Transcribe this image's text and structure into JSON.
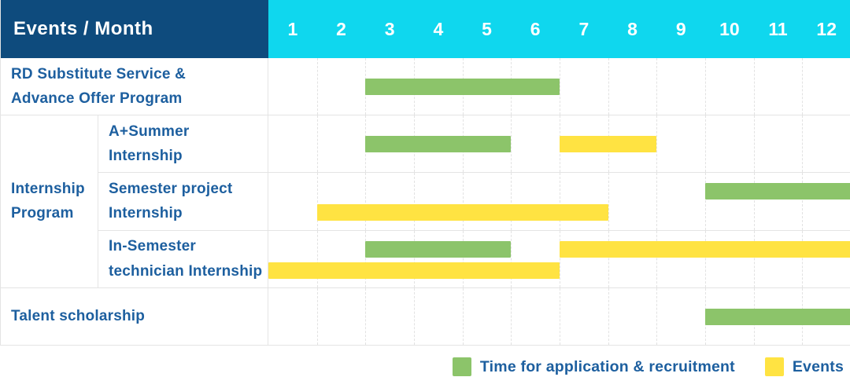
{
  "colors": {
    "header_bg": "#0e4b7d",
    "months_bg": "#0fd7ee",
    "label_text": "#1d5f9f",
    "recruitment_green": "#8cc46a",
    "event_yellow": "#ffe342",
    "grid_line": "#e2e2e2",
    "cell_border": "#e4e4e4"
  },
  "chart_data": {
    "type": "gantt",
    "title": "Events / Month",
    "x_axis_label": "Month",
    "months": [
      "1",
      "2",
      "3",
      "4",
      "5",
      "6",
      "7",
      "8",
      "9",
      "10",
      "11",
      "12"
    ],
    "x_range": [
      1,
      12
    ],
    "grid": "dashed-vertical-per-month",
    "legend_position": "bottom-right",
    "group": {
      "label": "Internship\nProgram",
      "covers_rows": [
        1,
        2,
        3
      ]
    },
    "rows": [
      {
        "label": "RD Substitute Service &\nAdvance Offer Program",
        "in_group": false,
        "bars": [
          {
            "kind": "recruitment",
            "start_month": 3,
            "end_month": 6,
            "lane": "center"
          }
        ]
      },
      {
        "label": "A+Summer\nInternship",
        "in_group": true,
        "bars": [
          {
            "kind": "recruitment",
            "start_month": 3,
            "end_month": 5,
            "lane": "center"
          },
          {
            "kind": "event",
            "start_month": 7,
            "end_month": 8,
            "lane": "center"
          }
        ]
      },
      {
        "label": "Semester project\nInternship",
        "in_group": true,
        "bars": [
          {
            "kind": "recruitment",
            "start_month": 10,
            "end_month": 12,
            "lane": "top"
          },
          {
            "kind": "event",
            "start_month": 2,
            "end_month": 7,
            "lane": "bottom"
          }
        ]
      },
      {
        "label": "In-Semester\ntechnician Internship",
        "in_group": true,
        "bars": [
          {
            "kind": "recruitment",
            "start_month": 3,
            "end_month": 5,
            "lane": "top"
          },
          {
            "kind": "event",
            "start_month": 7,
            "end_month": 12,
            "lane": "top"
          },
          {
            "kind": "event",
            "start_month": 1,
            "end_month": 6,
            "lane": "bottom"
          }
        ]
      },
      {
        "label": "Talent scholarship",
        "in_group": false,
        "bars": [
          {
            "kind": "recruitment",
            "start_month": 10,
            "end_month": 12,
            "lane": "center"
          }
        ]
      }
    ],
    "legend": [
      {
        "kind": "recruitment",
        "label": "Time for application & recruitment",
        "color": "#8cc46a"
      },
      {
        "kind": "event",
        "label": "Events",
        "color": "#ffe342"
      }
    ]
  }
}
